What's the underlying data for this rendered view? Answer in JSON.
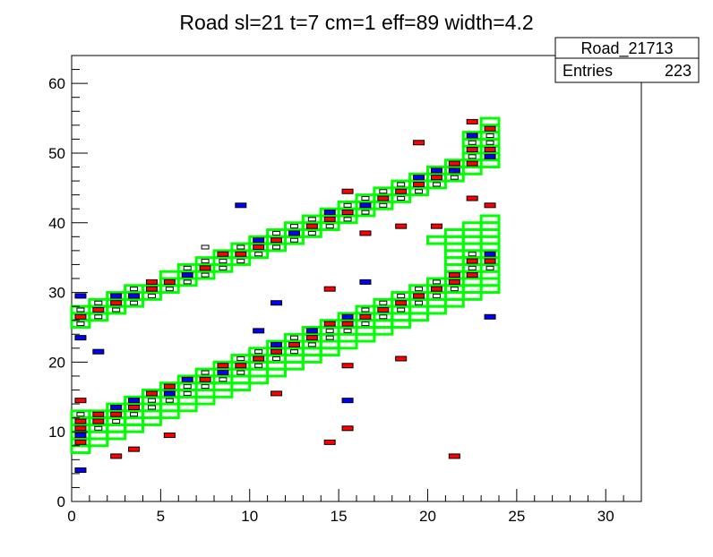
{
  "chart_data": {
    "type": "heatmap",
    "title": "Road sl=21 t=7 cm=1 eff=89 width=4.2",
    "xlim": [
      0,
      32
    ],
    "ylim": [
      0,
      64
    ],
    "x_ticks": [
      0,
      5,
      10,
      15,
      20,
      25,
      30
    ],
    "y_ticks": [
      0,
      10,
      20,
      30,
      40,
      50,
      60
    ],
    "xlabel": "",
    "ylabel": "",
    "stats_box": {
      "name": "Road_21713",
      "entries_label": "Entries",
      "entries_value": "223"
    },
    "colors": {
      "road": "#00ff00",
      "hit_red": "#ff0000",
      "hit_blue": "#0000ff",
      "frame": "#000000"
    },
    "road_cells": [
      [
        0,
        25
      ],
      [
        0,
        26
      ],
      [
        0,
        27
      ],
      [
        1,
        26
      ],
      [
        1,
        27
      ],
      [
        1,
        28
      ],
      [
        2,
        27
      ],
      [
        2,
        28
      ],
      [
        2,
        29
      ],
      [
        3,
        28
      ],
      [
        3,
        29
      ],
      [
        3,
        30
      ],
      [
        4,
        29
      ],
      [
        4,
        30
      ],
      [
        5,
        30
      ],
      [
        5,
        31
      ],
      [
        5,
        32
      ],
      [
        6,
        31
      ],
      [
        6,
        32
      ],
      [
        6,
        33
      ],
      [
        7,
        32
      ],
      [
        7,
        33
      ],
      [
        7,
        34
      ],
      [
        8,
        33
      ],
      [
        8,
        34
      ],
      [
        8,
        35
      ],
      [
        9,
        34
      ],
      [
        9,
        35
      ],
      [
        9,
        36
      ],
      [
        10,
        35
      ],
      [
        10,
        36
      ],
      [
        10,
        37
      ],
      [
        11,
        36
      ],
      [
        11,
        37
      ],
      [
        11,
        38
      ],
      [
        12,
        37
      ],
      [
        12,
        38
      ],
      [
        12,
        39
      ],
      [
        13,
        38
      ],
      [
        13,
        39
      ],
      [
        13,
        40
      ],
      [
        14,
        39
      ],
      [
        14,
        40
      ],
      [
        14,
        41
      ],
      [
        15,
        40
      ],
      [
        15,
        41
      ],
      [
        15,
        42
      ],
      [
        16,
        41
      ],
      [
        16,
        42
      ],
      [
        16,
        43
      ],
      [
        17,
        42
      ],
      [
        17,
        43
      ],
      [
        17,
        44
      ],
      [
        18,
        43
      ],
      [
        18,
        44
      ],
      [
        18,
        45
      ],
      [
        19,
        44
      ],
      [
        19,
        45
      ],
      [
        19,
        46
      ],
      [
        20,
        45
      ],
      [
        20,
        46
      ],
      [
        20,
        47
      ],
      [
        21,
        46
      ],
      [
        21,
        47
      ],
      [
        21,
        48
      ],
      [
        22,
        47
      ],
      [
        22,
        48
      ],
      [
        22,
        49
      ],
      [
        22,
        50
      ],
      [
        22,
        51
      ],
      [
        22,
        52
      ],
      [
        23,
        48
      ],
      [
        23,
        49
      ],
      [
        23,
        50
      ],
      [
        23,
        51
      ],
      [
        23,
        52
      ],
      [
        23,
        53
      ],
      [
        23,
        54
      ],
      [
        0,
        7
      ],
      [
        0,
        8
      ],
      [
        0,
        9
      ],
      [
        0,
        10
      ],
      [
        0,
        11
      ],
      [
        0,
        12
      ],
      [
        1,
        8
      ],
      [
        1,
        9
      ],
      [
        1,
        10
      ],
      [
        1,
        11
      ],
      [
        1,
        12
      ],
      [
        2,
        9
      ],
      [
        2,
        10
      ],
      [
        2,
        11
      ],
      [
        2,
        12
      ],
      [
        2,
        13
      ],
      [
        3,
        10
      ],
      [
        3,
        11
      ],
      [
        3,
        12
      ],
      [
        3,
        13
      ],
      [
        3,
        14
      ],
      [
        4,
        11
      ],
      [
        4,
        12
      ],
      [
        4,
        13
      ],
      [
        4,
        14
      ],
      [
        4,
        15
      ],
      [
        5,
        12
      ],
      [
        5,
        13
      ],
      [
        5,
        14
      ],
      [
        5,
        15
      ],
      [
        5,
        16
      ],
      [
        6,
        13
      ],
      [
        6,
        14
      ],
      [
        6,
        15
      ],
      [
        6,
        16
      ],
      [
        6,
        17
      ],
      [
        7,
        14
      ],
      [
        7,
        15
      ],
      [
        7,
        16
      ],
      [
        7,
        17
      ],
      [
        7,
        18
      ],
      [
        8,
        15
      ],
      [
        8,
        16
      ],
      [
        8,
        17
      ],
      [
        8,
        18
      ],
      [
        8,
        19
      ],
      [
        9,
        16
      ],
      [
        9,
        17
      ],
      [
        9,
        18
      ],
      [
        9,
        19
      ],
      [
        9,
        20
      ],
      [
        10,
        17
      ],
      [
        10,
        18
      ],
      [
        10,
        19
      ],
      [
        10,
        20
      ],
      [
        10,
        21
      ],
      [
        11,
        18
      ],
      [
        11,
        19
      ],
      [
        11,
        20
      ],
      [
        11,
        21
      ],
      [
        11,
        22
      ],
      [
        12,
        19
      ],
      [
        12,
        20
      ],
      [
        12,
        21
      ],
      [
        12,
        22
      ],
      [
        12,
        23
      ],
      [
        13,
        20
      ],
      [
        13,
        21
      ],
      [
        13,
        22
      ],
      [
        13,
        23
      ],
      [
        13,
        24
      ],
      [
        14,
        21
      ],
      [
        14,
        22
      ],
      [
        14,
        23
      ],
      [
        14,
        24
      ],
      [
        14,
        25
      ],
      [
        15,
        22
      ],
      [
        15,
        23
      ],
      [
        15,
        24
      ],
      [
        15,
        25
      ],
      [
        15,
        26
      ],
      [
        16,
        23
      ],
      [
        16,
        24
      ],
      [
        16,
        25
      ],
      [
        16,
        26
      ],
      [
        16,
        27
      ],
      [
        17,
        24
      ],
      [
        17,
        25
      ],
      [
        17,
        26
      ],
      [
        17,
        27
      ],
      [
        17,
        28
      ],
      [
        18,
        25
      ],
      [
        18,
        26
      ],
      [
        18,
        27
      ],
      [
        18,
        28
      ],
      [
        18,
        29
      ],
      [
        19,
        26
      ],
      [
        19,
        27
      ],
      [
        19,
        28
      ],
      [
        19,
        29
      ],
      [
        19,
        30
      ],
      [
        20,
        27
      ],
      [
        20,
        28
      ],
      [
        20,
        29
      ],
      [
        20,
        30
      ],
      [
        20,
        31
      ],
      [
        20,
        37
      ],
      [
        21,
        28
      ],
      [
        21,
        29
      ],
      [
        21,
        30
      ],
      [
        21,
        31
      ],
      [
        21,
        32
      ],
      [
        21,
        33
      ],
      [
        21,
        34
      ],
      [
        21,
        35
      ],
      [
        21,
        36
      ],
      [
        21,
        37
      ],
      [
        21,
        38
      ],
      [
        22,
        29
      ],
      [
        22,
        30
      ],
      [
        22,
        31
      ],
      [
        22,
        32
      ],
      [
        22,
        33
      ],
      [
        22,
        34
      ],
      [
        22,
        35
      ],
      [
        22,
        36
      ],
      [
        22,
        37
      ],
      [
        22,
        38
      ],
      [
        22,
        39
      ],
      [
        23,
        30
      ],
      [
        23,
        31
      ],
      [
        23,
        32
      ],
      [
        23,
        33
      ],
      [
        23,
        34
      ],
      [
        23,
        35
      ],
      [
        23,
        36
      ],
      [
        23,
        37
      ],
      [
        23,
        38
      ],
      [
        23,
        39
      ],
      [
        23,
        40
      ]
    ],
    "hits": [
      [
        0,
        25,
        "w"
      ],
      [
        0,
        26,
        "r"
      ],
      [
        0,
        27,
        "w"
      ],
      [
        1,
        26,
        "w"
      ],
      [
        1,
        27,
        "r"
      ],
      [
        1,
        28,
        "w"
      ],
      [
        2,
        27,
        "w"
      ],
      [
        2,
        28,
        "r"
      ],
      [
        2,
        29,
        "b"
      ],
      [
        3,
        28,
        "w"
      ],
      [
        3,
        29,
        "b"
      ],
      [
        3,
        30,
        "w"
      ],
      [
        4,
        29,
        "w"
      ],
      [
        4,
        30,
        "r"
      ],
      [
        5,
        31,
        "r"
      ],
      [
        5,
        30,
        "w"
      ],
      [
        6,
        32,
        "b"
      ],
      [
        6,
        33,
        "w"
      ],
      [
        6,
        31,
        "w"
      ],
      [
        7,
        33,
        "r"
      ],
      [
        7,
        32,
        "w"
      ],
      [
        7,
        34,
        "w"
      ],
      [
        8,
        35,
        "r"
      ],
      [
        8,
        34,
        "w"
      ],
      [
        8,
        33,
        "w"
      ],
      [
        9,
        35,
        "r"
      ],
      [
        9,
        34,
        "w"
      ],
      [
        9,
        36,
        "w"
      ],
      [
        10,
        36,
        "r"
      ],
      [
        10,
        37,
        "b"
      ],
      [
        10,
        35,
        "w"
      ],
      [
        11,
        37,
        "r"
      ],
      [
        11,
        36,
        "w"
      ],
      [
        11,
        38,
        "w"
      ],
      [
        12,
        38,
        "b"
      ],
      [
        12,
        37,
        "w"
      ],
      [
        12,
        39,
        "w"
      ],
      [
        13,
        39,
        "r"
      ],
      [
        13,
        38,
        "w"
      ],
      [
        13,
        40,
        "w"
      ],
      [
        14,
        40,
        "r"
      ],
      [
        14,
        41,
        "b"
      ],
      [
        14,
        39,
        "w"
      ],
      [
        15,
        41,
        "r"
      ],
      [
        15,
        40,
        "w"
      ],
      [
        15,
        42,
        "w"
      ],
      [
        16,
        42,
        "b"
      ],
      [
        16,
        41,
        "w"
      ],
      [
        16,
        43,
        "w"
      ],
      [
        17,
        43,
        "r"
      ],
      [
        17,
        42,
        "w"
      ],
      [
        17,
        44,
        "w"
      ],
      [
        18,
        44,
        "r"
      ],
      [
        18,
        45,
        "w"
      ],
      [
        18,
        43,
        "w"
      ],
      [
        19,
        45,
        "r"
      ],
      [
        19,
        46,
        "b"
      ],
      [
        19,
        44,
        "w"
      ],
      [
        20,
        46,
        "r"
      ],
      [
        20,
        47,
        "b"
      ],
      [
        20,
        45,
        "w"
      ],
      [
        21,
        47,
        "b"
      ],
      [
        21,
        48,
        "r"
      ],
      [
        21,
        46,
        "w"
      ],
      [
        22,
        48,
        "r"
      ],
      [
        22,
        49,
        "w"
      ],
      [
        22,
        50,
        "r"
      ],
      [
        22,
        51,
        "w"
      ],
      [
        22,
        52,
        "b"
      ],
      [
        23,
        49,
        "b"
      ],
      [
        23,
        50,
        "r"
      ],
      [
        23,
        51,
        "w"
      ],
      [
        23,
        52,
        "w"
      ],
      [
        23,
        53,
        "r"
      ],
      [
        0,
        9,
        "b"
      ],
      [
        0,
        10,
        "r"
      ],
      [
        0,
        11,
        "r"
      ],
      [
        0,
        12,
        "w"
      ],
      [
        1,
        10,
        "w"
      ],
      [
        1,
        11,
        "r"
      ],
      [
        1,
        12,
        "r"
      ],
      [
        2,
        11,
        "w"
      ],
      [
        2,
        12,
        "r"
      ],
      [
        2,
        13,
        "b"
      ],
      [
        3,
        12,
        "w"
      ],
      [
        3,
        13,
        "r"
      ],
      [
        3,
        14,
        "b"
      ],
      [
        4,
        13,
        "w"
      ],
      [
        4,
        14,
        "w"
      ],
      [
        4,
        15,
        "r"
      ],
      [
        5,
        14,
        "w"
      ],
      [
        5,
        15,
        "b"
      ],
      [
        5,
        16,
        "r"
      ],
      [
        6,
        15,
        "w"
      ],
      [
        6,
        16,
        "w"
      ],
      [
        6,
        17,
        "b"
      ],
      [
        7,
        16,
        "w"
      ],
      [
        7,
        17,
        "r"
      ],
      [
        7,
        18,
        "w"
      ],
      [
        8,
        17,
        "w"
      ],
      [
        8,
        18,
        "b"
      ],
      [
        8,
        19,
        "r"
      ],
      [
        9,
        18,
        "w"
      ],
      [
        9,
        19,
        "r"
      ],
      [
        9,
        20,
        "w"
      ],
      [
        10,
        19,
        "w"
      ],
      [
        10,
        20,
        "r"
      ],
      [
        10,
        21,
        "w"
      ],
      [
        11,
        20,
        "w"
      ],
      [
        11,
        21,
        "r"
      ],
      [
        11,
        22,
        "b"
      ],
      [
        12,
        21,
        "w"
      ],
      [
        12,
        22,
        "r"
      ],
      [
        12,
        23,
        "w"
      ],
      [
        13,
        22,
        "w"
      ],
      [
        13,
        23,
        "r"
      ],
      [
        13,
        24,
        "b"
      ],
      [
        14,
        23,
        "w"
      ],
      [
        14,
        24,
        "w"
      ],
      [
        14,
        25,
        "r"
      ],
      [
        15,
        24,
        "w"
      ],
      [
        15,
        25,
        "r"
      ],
      [
        15,
        26,
        "b"
      ],
      [
        16,
        25,
        "w"
      ],
      [
        16,
        26,
        "r"
      ],
      [
        16,
        27,
        "w"
      ],
      [
        17,
        26,
        "w"
      ],
      [
        17,
        27,
        "r"
      ],
      [
        17,
        28,
        "w"
      ],
      [
        18,
        27,
        "w"
      ],
      [
        18,
        28,
        "r"
      ],
      [
        18,
        29,
        "w"
      ],
      [
        19,
        28,
        "w"
      ],
      [
        19,
        29,
        "r"
      ],
      [
        19,
        30,
        "w"
      ],
      [
        20,
        29,
        "w"
      ],
      [
        20,
        30,
        "r"
      ],
      [
        20,
        31,
        "w"
      ],
      [
        21,
        30,
        "w"
      ],
      [
        21,
        31,
        "r"
      ],
      [
        21,
        32,
        "r"
      ],
      [
        22,
        32,
        "r"
      ],
      [
        22,
        33,
        "w"
      ],
      [
        22,
        34,
        "r"
      ],
      [
        22,
        35,
        "w"
      ],
      [
        23,
        33,
        "w"
      ],
      [
        23,
        34,
        "r"
      ],
      [
        23,
        35,
        "b"
      ],
      [
        0,
        4,
        "b"
      ],
      [
        0,
        8,
        "r"
      ],
      [
        0,
        14,
        "r"
      ],
      [
        0,
        23,
        "b"
      ],
      [
        0,
        29,
        "b"
      ],
      [
        1,
        21,
        "b"
      ],
      [
        2,
        6,
        "r"
      ],
      [
        3,
        7,
        "r"
      ],
      [
        5,
        9,
        "r"
      ],
      [
        4,
        31,
        "r"
      ],
      [
        7,
        36,
        "w"
      ],
      [
        9,
        42,
        "b"
      ],
      [
        10,
        24,
        "b"
      ],
      [
        11,
        15,
        "r"
      ],
      [
        11,
        28,
        "b"
      ],
      [
        14,
        8,
        "r"
      ],
      [
        14,
        30,
        "r"
      ],
      [
        15,
        10,
        "r"
      ],
      [
        15,
        14,
        "b"
      ],
      [
        15,
        19,
        "r"
      ],
      [
        15,
        44,
        "r"
      ],
      [
        16,
        31,
        "b"
      ],
      [
        16,
        38,
        "r"
      ],
      [
        18,
        20,
        "r"
      ],
      [
        18,
        39,
        "r"
      ],
      [
        19,
        51,
        "r"
      ],
      [
        20,
        39,
        "r"
      ],
      [
        21,
        6,
        "r"
      ],
      [
        22,
        43,
        "r"
      ],
      [
        22,
        54,
        "r"
      ],
      [
        23,
        26,
        "b"
      ],
      [
        23,
        42,
        "r"
      ]
    ]
  }
}
